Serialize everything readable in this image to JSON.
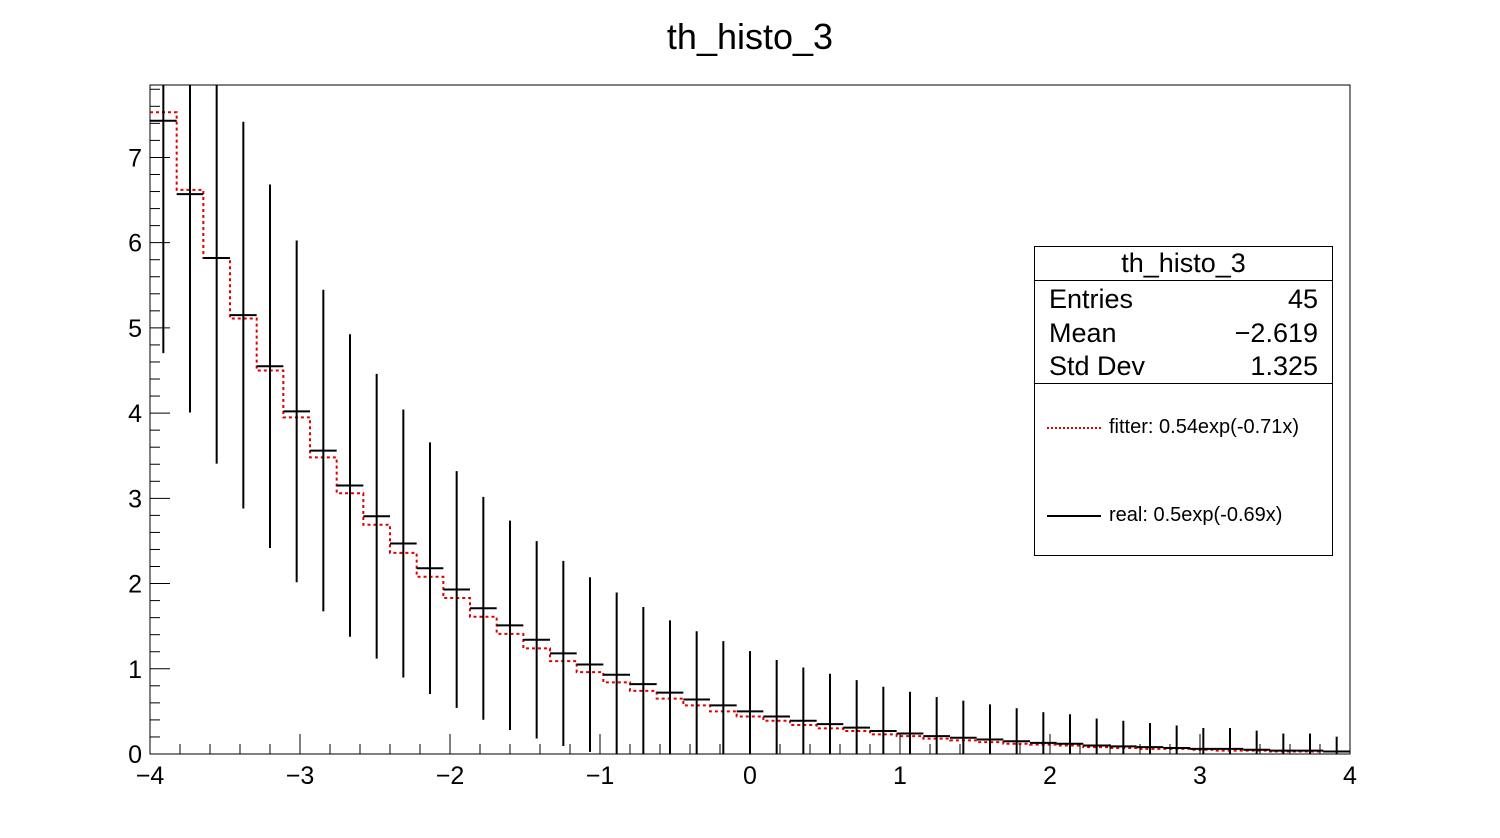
{
  "title": "th_histo_3",
  "stats": {
    "title": "th_histo_3",
    "rows": [
      {
        "label": "Entries",
        "value": "45"
      },
      {
        "label": "Mean",
        "value": "−2.619"
      },
      {
        "label": "Std Dev",
        "value": "1.325"
      }
    ]
  },
  "legend": [
    {
      "label": "fitter: 0.54exp(-0.71x)",
      "color": "#e00000",
      "style": "dotted"
    },
    {
      "label": "real: 0.5exp(-0.69x)",
      "color": "#000000",
      "style": "solid"
    }
  ],
  "chart_data": {
    "type": "histogram",
    "title": "th_histo_3",
    "xlabel": "",
    "ylabel": "",
    "xlim": [
      -4,
      4
    ],
    "ylim": [
      0,
      7.85
    ],
    "x_ticks": [
      -4,
      -3,
      -2,
      -1,
      0,
      1,
      2,
      3,
      4
    ],
    "x_tick_labels": [
      "−4",
      "−3",
      "−2",
      "−1",
      "0",
      "1",
      "2",
      "3",
      "4"
    ],
    "y_ticks": [
      0,
      1,
      2,
      3,
      4,
      5,
      6,
      7
    ],
    "y_tick_labels": [
      "0",
      "1",
      "2",
      "3",
      "4",
      "5",
      "6",
      "7"
    ],
    "bins": 45,
    "series": [
      {
        "name": "real: 0.5exp(-0.69x)",
        "color": "#000000",
        "style": "solid",
        "error_bars": true,
        "errors_note": "Poisson errors sqrt(value)"
      },
      {
        "name": "fitter: 0.54exp(-0.71x)",
        "color": "#e00000",
        "style": "dotted",
        "error_bars": false
      }
    ],
    "real_values": [
      7.43,
      6.57,
      5.82,
      5.15,
      4.55,
      4.02,
      3.56,
      3.15,
      2.79,
      2.47,
      2.18,
      1.93,
      1.71,
      1.51,
      1.34,
      1.18,
      1.05,
      0.93,
      0.82,
      0.72,
      0.64,
      0.57,
      0.5,
      0.44,
      0.39,
      0.35,
      0.31,
      0.27,
      0.24,
      0.21,
      0.19,
      0.17,
      0.15,
      0.13,
      0.12,
      0.1,
      0.09,
      0.08,
      0.07,
      0.06,
      0.06,
      0.05,
      0.04,
      0.04,
      0.03
    ],
    "fit_values": [
      7.53,
      6.62,
      5.82,
      5.11,
      4.5,
      3.95,
      3.48,
      3.06,
      2.69,
      2.36,
      2.08,
      1.83,
      1.61,
      1.41,
      1.24,
      1.09,
      0.96,
      0.84,
      0.74,
      0.65,
      0.57,
      0.5,
      0.44,
      0.39,
      0.34,
      0.3,
      0.27,
      0.23,
      0.21,
      0.18,
      0.16,
      0.14,
      0.12,
      0.11,
      0.1,
      0.08,
      0.07,
      0.06,
      0.06,
      0.05,
      0.04,
      0.04,
      0.03,
      0.03,
      0.03
    ],
    "grid": false,
    "legend_position": "right"
  }
}
